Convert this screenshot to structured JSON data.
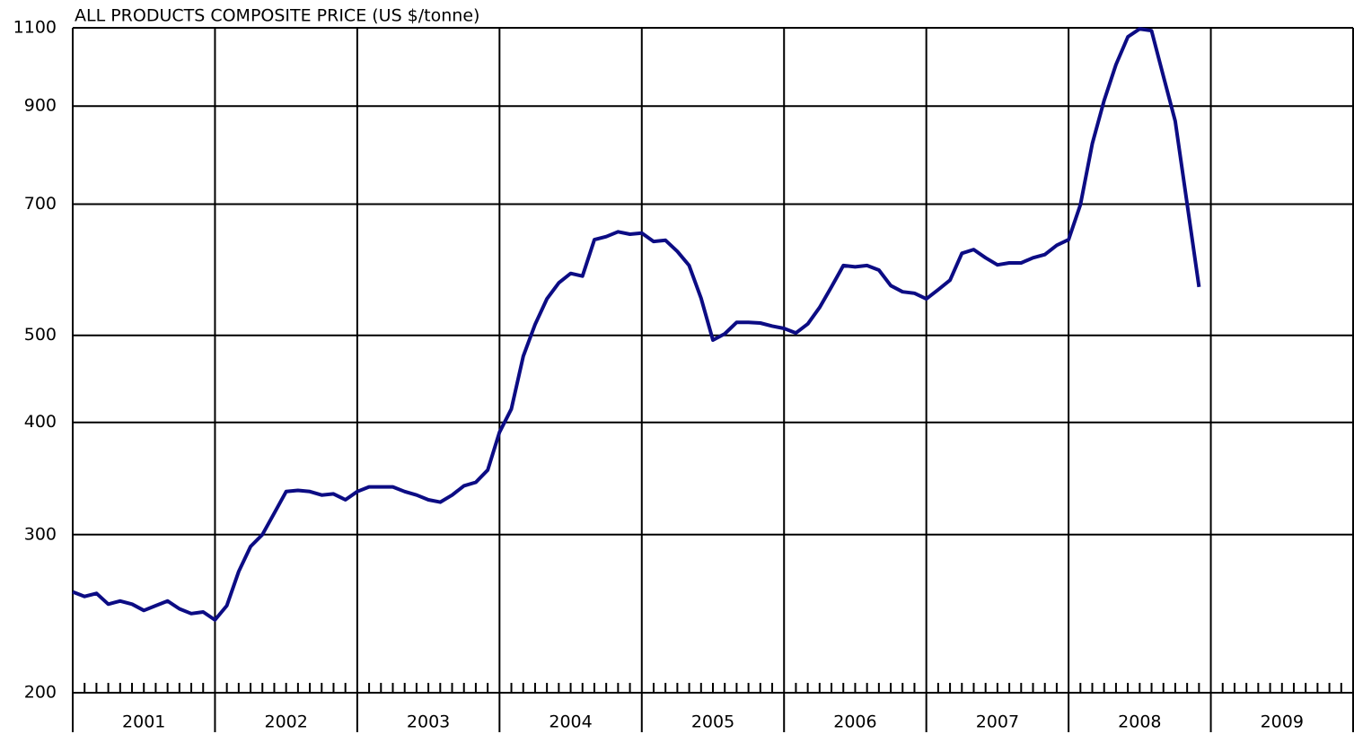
{
  "chart_data": {
    "type": "line",
    "title": "ALL PRODUCTS COMPOSITE PRICE  (US $/tonne)",
    "categories": [
      "2001",
      "2002",
      "2003",
      "2004",
      "2005",
      "2006",
      "2007",
      "2008",
      "2009"
    ],
    "xlim": [
      2001,
      2010
    ],
    "xticks": [
      2001,
      2002,
      2003,
      2004,
      2005,
      2006,
      2007,
      2008,
      2009,
      2010
    ],
    "ylim": [
      200,
      1100
    ],
    "yticks": [
      200,
      300,
      400,
      500,
      700,
      900,
      1100
    ],
    "yscale": "log",
    "grid": true,
    "minor_ticks_per_interval": 12,
    "series": [
      {
        "color": "#0c0c84",
        "x": [
          2001.0,
          2001.083,
          2001.167,
          2001.25,
          2001.333,
          2001.417,
          2001.5,
          2001.583,
          2001.667,
          2001.75,
          2001.833,
          2001.917,
          2002.0,
          2002.083,
          2002.167,
          2002.25,
          2002.333,
          2002.417,
          2002.5,
          2002.583,
          2002.667,
          2002.75,
          2002.833,
          2002.917,
          2003.0,
          2003.083,
          2003.167,
          2003.25,
          2003.333,
          2003.417,
          2003.5,
          2003.583,
          2003.667,
          2003.75,
          2003.833,
          2003.917,
          2004.0,
          2004.083,
          2004.167,
          2004.25,
          2004.333,
          2004.417,
          2004.5,
          2004.583,
          2004.667,
          2004.75,
          2004.833,
          2004.917,
          2005.0,
          2005.083,
          2005.167,
          2005.25,
          2005.333,
          2005.417,
          2005.5,
          2005.583,
          2005.667,
          2005.75,
          2005.833,
          2005.917,
          2006.0,
          2006.083,
          2006.167,
          2006.25,
          2006.333,
          2006.417,
          2006.5,
          2006.583,
          2006.667,
          2006.75,
          2006.833,
          2006.917,
          2007.0,
          2007.083,
          2007.167,
          2007.25,
          2007.333,
          2007.417,
          2007.5,
          2007.583,
          2007.667,
          2007.75,
          2007.833,
          2007.917,
          2008.0,
          2008.083,
          2008.167,
          2008.25,
          2008.333,
          2008.417,
          2008.5,
          2008.583,
          2008.667,
          2008.75,
          2008.833,
          2008.917
        ],
        "values": [
          259,
          256,
          258,
          251,
          253,
          251,
          247,
          250,
          253,
          248,
          245,
          246,
          241,
          250,
          273,
          291,
          300,
          317,
          335,
          336,
          335,
          332,
          333,
          328,
          335,
          339,
          339,
          339,
          335,
          332,
          328,
          326,
          332,
          340,
          343,
          354,
          390,
          414,
          474,
          514,
          549,
          572,
          586,
          582,
          639,
          644,
          652,
          648,
          650,
          636,
          638,
          620,
          598,
          550,
          494,
          502,
          517,
          517,
          516,
          512,
          509,
          503,
          515,
          537,
          566,
          598,
          596,
          598,
          591,
          568,
          559,
          557,
          549,
          562,
          576,
          617,
          623,
          610,
          599,
          602,
          602,
          610,
          615,
          630,
          639,
          699,
          818,
          913,
          1001,
          1075,
          1097,
          1092,
          971,
          866,
          701,
          566
        ]
      }
    ]
  }
}
